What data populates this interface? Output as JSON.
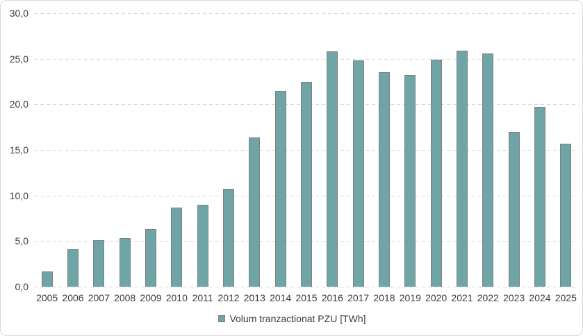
{
  "chart_data": {
    "type": "bar",
    "title": "",
    "xlabel": "",
    "ylabel": "",
    "categories": [
      "2005",
      "2006",
      "2007",
      "2008",
      "2009",
      "2010",
      "2011",
      "2012",
      "2013",
      "2014",
      "2015",
      "2016",
      "2017",
      "2018",
      "2019",
      "2020",
      "2021",
      "2022",
      "2023",
      "2024",
      "2025"
    ],
    "series": [
      {
        "name": "Volum tranzactionat PZU [TWh]",
        "values": [
          1.7,
          4.1,
          5.1,
          5.3,
          6.3,
          8.7,
          9.0,
          10.7,
          16.4,
          21.5,
          22.5,
          25.8,
          24.8,
          23.5,
          23.2,
          24.9,
          25.9,
          25.6,
          17.0,
          19.7,
          15.7
        ]
      }
    ],
    "legend": {
      "label": "Volum tranzactionat PZU [TWh]",
      "position": "bottom"
    },
    "ylim": [
      0,
      30
    ],
    "y_tick_step": 5,
    "y_ticks": [
      "30,0",
      "25,0",
      "20,0",
      "15,0",
      "10,0",
      "5,0",
      "0,0"
    ],
    "grid": "horizontal-dashed",
    "colors": {
      "bar_fill": "#6fa5a7",
      "bar_border": "#7f7f7f",
      "gridline": "#d9d9d9",
      "text": "#3b3b3b",
      "chart_border": "#d7d7d7",
      "background": "#ffffff"
    }
  }
}
